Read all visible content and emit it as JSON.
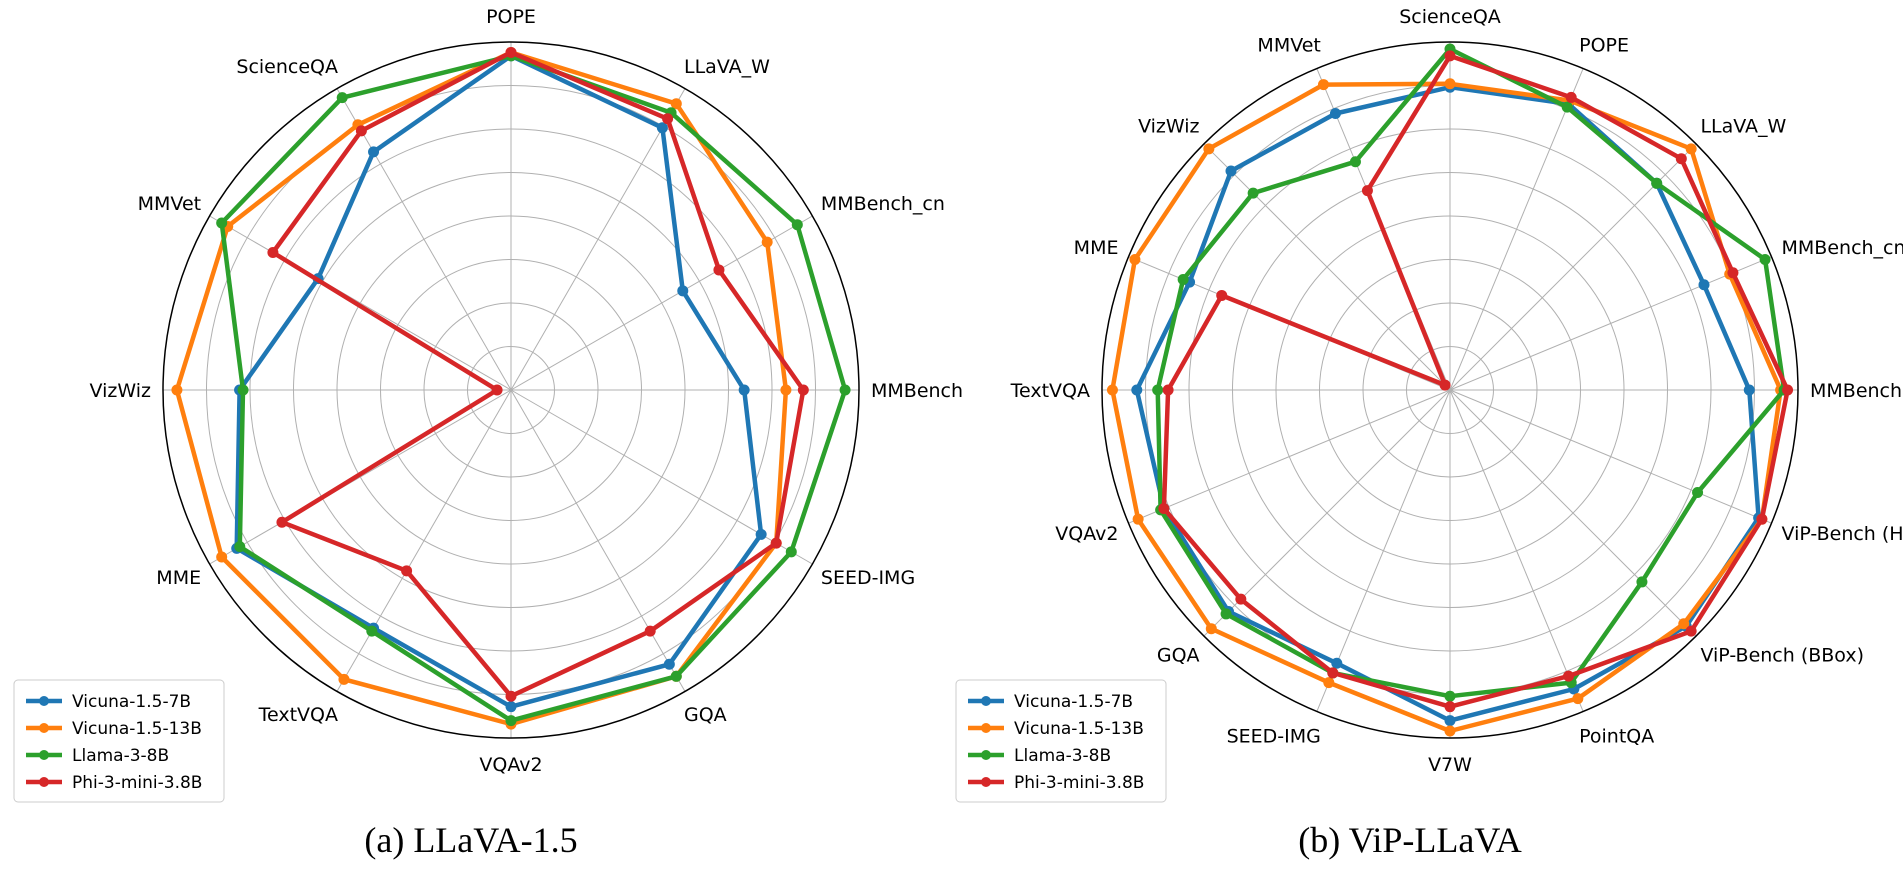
{
  "chart_data": [
    {
      "type": "radar",
      "title": "(a) LLaVA-1.5",
      "axes": [
        "POPE",
        "LLaVA_W",
        "MMBench_cn",
        "MMBench",
        "SEED-IMG",
        "GQA",
        "VQAv2",
        "TextVQA",
        "MME",
        "VizWiz",
        "MMVet",
        "ScienceQA"
      ],
      "rlim": [
        0,
        1
      ],
      "legend_position": "lower-left",
      "series": [
        {
          "name": "Vicuna-1.5-7B",
          "color": "#1f77b4",
          "values": [
            0.96,
            0.87,
            0.57,
            0.67,
            0.83,
            0.91,
            0.91,
            0.79,
            0.91,
            0.78,
            0.64,
            0.79
          ]
        },
        {
          "name": "Vicuna-1.5-13B",
          "color": "#ff7f0e",
          "values": [
            0.97,
            0.95,
            0.85,
            0.79,
            0.88,
            0.95,
            0.96,
            0.96,
            0.96,
            0.96,
            0.94,
            0.88
          ]
        },
        {
          "name": "Llama-3-8B",
          "color": "#2ca02c",
          "values": [
            0.96,
            0.92,
            0.95,
            0.96,
            0.93,
            0.95,
            0.95,
            0.8,
            0.9,
            0.77,
            0.96,
            0.97
          ]
        },
        {
          "name": "Phi-3-mini-3.8B",
          "color": "#d62728",
          "values": [
            0.97,
            0.9,
            0.69,
            0.84,
            0.88,
            0.8,
            0.88,
            0.6,
            0.76,
            0.04,
            0.79,
            0.86
          ]
        }
      ]
    },
    {
      "type": "radar",
      "title": "(b) ViP-LLaVA",
      "axes": [
        "ScienceQA",
        "POPE",
        "LLaVA_W",
        "MMBench_cn",
        "MMBench",
        "ViP-Bench (Human)",
        "ViP-Bench (BBox)",
        "PointQA",
        "V7W",
        "SEED-IMG",
        "GQA",
        "VQAv2",
        "TextVQA",
        "MME",
        "VizWiz",
        "MMVet"
      ],
      "rlim": [
        0,
        1
      ],
      "legend_position": "lower-left",
      "series": [
        {
          "name": "Vicuna-1.5-7B",
          "color": "#1f77b4",
          "values": [
            0.87,
            0.89,
            0.84,
            0.79,
            0.86,
            0.96,
            0.96,
            0.93,
            0.95,
            0.85,
            0.9,
            0.89,
            0.9,
            0.81,
            0.89,
            0.86
          ]
        },
        {
          "name": "Vicuna-1.5-13B",
          "color": "#ff7f0e",
          "values": [
            0.88,
            0.9,
            0.98,
            0.87,
            0.95,
            0.97,
            0.95,
            0.96,
            0.98,
            0.91,
            0.97,
            0.97,
            0.97,
            0.98,
            0.98,
            0.95
          ]
        },
        {
          "name": "Llama-3-8B",
          "color": "#2ca02c",
          "values": [
            0.98,
            0.88,
            0.84,
            0.98,
            0.96,
            0.77,
            0.78,
            0.91,
            0.88,
            0.88,
            0.91,
            0.9,
            0.84,
            0.83,
            0.8,
            0.71
          ]
        },
        {
          "name": "Phi-3-mini-3.8B",
          "color": "#d62728",
          "values": [
            0.96,
            0.91,
            0.94,
            0.88,
            0.97,
            0.97,
            0.98,
            0.89,
            0.91,
            0.88,
            0.85,
            0.89,
            0.81,
            0.71,
            0.02,
            0.62
          ]
        }
      ]
    }
  ]
}
